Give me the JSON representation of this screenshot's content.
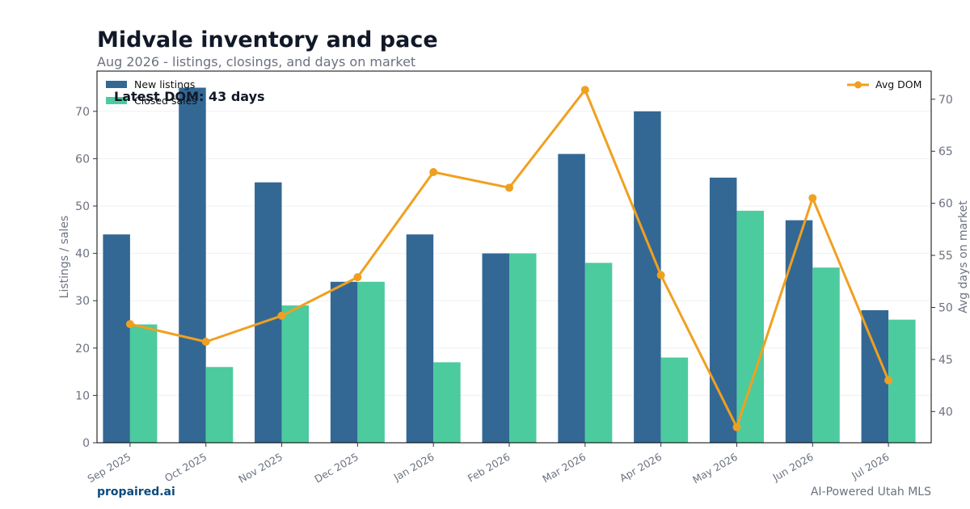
{
  "header": {
    "title": "Midvale inventory and pace",
    "subtitle": "Aug 2026 - listings, closings, and days on market"
  },
  "footer": {
    "brand": "propaired.ai",
    "tagline": "AI-Powered Utah MLS"
  },
  "colors": {
    "new_listings": "#336894",
    "closed_sales": "#4ccb9e",
    "avg_dom": "#f0a020",
    "axis_text": "#6b7280",
    "title_text": "#111827"
  },
  "chart_data": {
    "type": "bar",
    "categories": [
      "Sep 2025",
      "Oct 2025",
      "Nov 2025",
      "Dec 2025",
      "Jan 2026",
      "Feb 2026",
      "Mar 2026",
      "Apr 2026",
      "May 2026",
      "Jun 2026",
      "Jul 2026"
    ],
    "series": [
      {
        "name": "New listings",
        "type": "bar",
        "axis": "left",
        "values": [
          44,
          75,
          55,
          34,
          44,
          40,
          61,
          70,
          56,
          47,
          28
        ]
      },
      {
        "name": "Closed sales",
        "type": "bar",
        "axis": "left",
        "values": [
          25,
          16,
          29,
          34,
          17,
          40,
          38,
          18,
          49,
          37,
          26
        ]
      },
      {
        "name": "Avg DOM",
        "type": "line",
        "axis": "right",
        "values": [
          48.4,
          46.7,
          49.2,
          52.9,
          63.0,
          61.5,
          70.9,
          53.1,
          38.5,
          60.5,
          43.0
        ]
      }
    ],
    "annotation": "Latest DOM: 43 days",
    "ylabel": "Listings / sales",
    "y2label": "Avg days on market",
    "ylim": [
      0,
      78.5
    ],
    "y2lim": [
      37,
      72.7
    ],
    "yticks": [
      0,
      10,
      20,
      30,
      40,
      50,
      60,
      70
    ],
    "y2ticks": [
      40,
      45,
      50,
      55,
      60,
      65,
      70
    ],
    "grid": true,
    "legend_left": "top-left",
    "legend_right": "top-right"
  }
}
